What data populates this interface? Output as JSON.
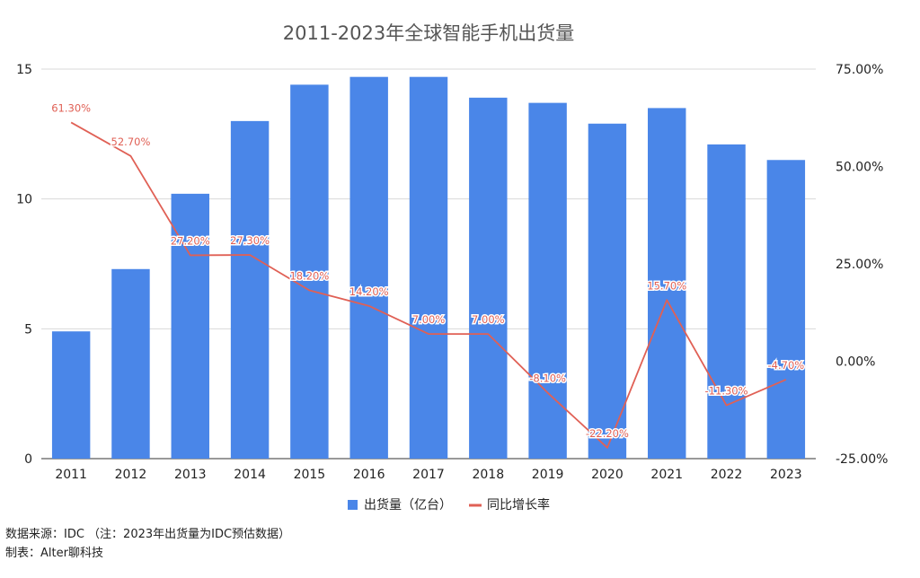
{
  "chart_data": {
    "type": "bar",
    "title": "2011-2023年全球智能手机出货量",
    "categories": [
      "2011",
      "2012",
      "2013",
      "2014",
      "2015",
      "2016",
      "2017",
      "2018",
      "2019",
      "2020",
      "2021",
      "2022",
      "2023"
    ],
    "series": [
      {
        "name": "出货量（亿台）",
        "type": "bar",
        "axis": "left",
        "color": "#4a86e8",
        "values": [
          4.9,
          7.3,
          10.2,
          13.0,
          14.4,
          14.7,
          14.7,
          13.9,
          13.7,
          12.9,
          13.5,
          12.1,
          11.5
        ]
      },
      {
        "name": "同比增长率",
        "type": "line",
        "axis": "right",
        "color": "#e06055",
        "values": [
          61.3,
          52.7,
          27.2,
          27.3,
          18.2,
          14.2,
          7.0,
          7.0,
          -8.1,
          -22.2,
          15.7,
          -11.3,
          -4.7
        ],
        "labels": [
          "61.30%",
          "52.70%",
          "27.20%",
          "27.30%",
          "18.20%",
          "14.20%",
          "7.00%",
          "7.00%",
          "-8.10%",
          "-22.20%",
          "15.70%",
          "-11.30%",
          "-4.70%"
        ]
      }
    ],
    "left_axis": {
      "ylim": [
        0,
        15
      ],
      "ticks": [
        0,
        5,
        10,
        15
      ],
      "tick_labels": [
        "0",
        "5",
        "10",
        "15"
      ]
    },
    "right_axis": {
      "ylim": [
        -25,
        75
      ],
      "ticks": [
        -25,
        0,
        25,
        50,
        75
      ],
      "tick_labels": [
        "-25.00%",
        "0.00%",
        "25.00%",
        "50.00%",
        "75.00%"
      ]
    },
    "grid": true,
    "legend_position": "bottom"
  },
  "footnotes": {
    "source": "数据来源：IDC （注：2023年出货量为IDC预估数据）",
    "author": "制表：Alter聊科技"
  }
}
